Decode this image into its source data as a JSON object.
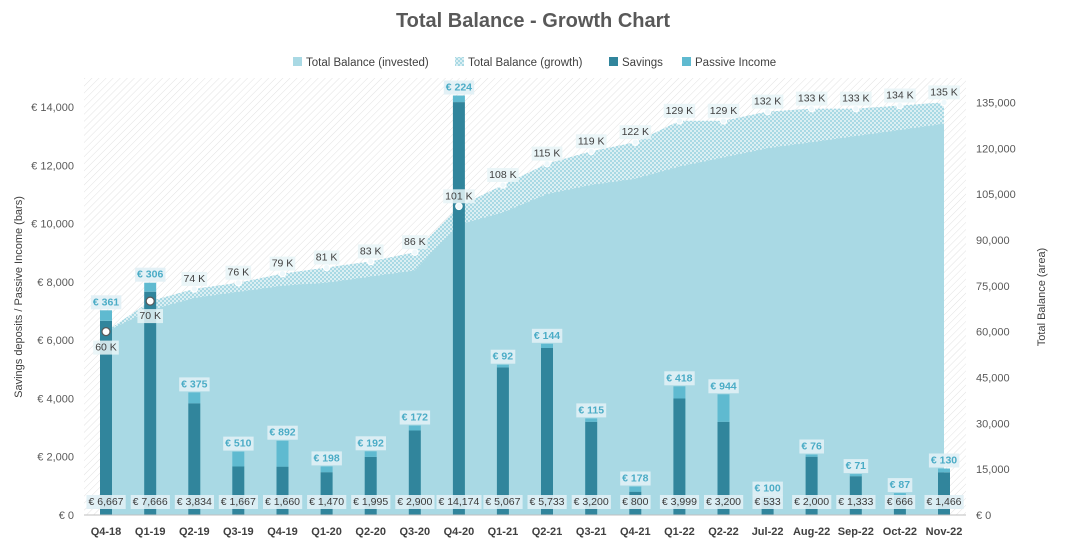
{
  "chart_data": {
    "type": "bar",
    "title": "Total Balance - Growth Chart",
    "ylabel_left": "Savings deposits / Passive Income (bars)",
    "ylabel_right": "Total Balance (area)",
    "y_left_range": [
      0,
      15000
    ],
    "y_right_range": [
      0,
      143000
    ],
    "y_left_ticks": [
      "€ 0",
      "€ 2,000",
      "€ 4,000",
      "€ 6,000",
      "€ 8,000",
      "€ 10,000",
      "€ 12,000",
      "€ 14,000"
    ],
    "y_right_ticks": [
      "€ 0",
      "15,000",
      "30,000",
      "45,000",
      "60,000",
      "75,000",
      "90,000",
      "105,000",
      "120,000",
      "135,000"
    ],
    "legend_position": "top",
    "colors": {
      "invested": "#a9d9e4",
      "growth": "#cfe8ef",
      "savings": "#31859c",
      "passive": "#5fbad0",
      "passive_label": "#4bacc6"
    },
    "legend": [
      {
        "name": "Total Balance (invested)",
        "style": "invested"
      },
      {
        "name": "Total Balance (growth)",
        "style": "growth"
      },
      {
        "name": "Savings",
        "style": "savings"
      },
      {
        "name": "Passive Income",
        "style": "passive"
      }
    ],
    "categories": [
      "Q4-18",
      "Q1-19",
      "Q2-19",
      "Q3-19",
      "Q4-19",
      "Q1-20",
      "Q2-20",
      "Q3-20",
      "Q4-20",
      "Q1-21",
      "Q2-21",
      "Q3-21",
      "Q4-21",
      "Q1-22",
      "Q2-22",
      "Jul-22",
      "Aug-22",
      "Sep-22",
      "Oct-22",
      "Nov-22"
    ],
    "series": [
      {
        "name": "Savings",
        "axis": "left",
        "values": [
          6667,
          7666,
          3834,
          1667,
          1660,
          1470,
          1995,
          2900,
          14174,
          5067,
          5733,
          3200,
          800,
          3999,
          3200,
          533,
          2000,
          1333,
          666,
          1466
        ],
        "labels": [
          "€ 6,667",
          "€ 7,666",
          "€ 3,834",
          "€ 1,667",
          "€ 1,660",
          "€ 1,470",
          "€ 1,995",
          "€ 2,900",
          "€ 14,174",
          "€ 5,067",
          "€ 5,733",
          "€ 3,200",
          "€ 800",
          "€ 3,999",
          "€ 3,200",
          "€ 533",
          "€ 2,000",
          "€ 1,333",
          "€ 666",
          "€ 1,466"
        ]
      },
      {
        "name": "Passive Income",
        "axis": "left",
        "values": [
          361,
          306,
          375,
          510,
          892,
          198,
          192,
          172,
          224,
          92,
          144,
          115,
          178,
          418,
          944,
          100,
          76,
          71,
          87,
          130
        ],
        "labels": [
          "€ 361",
          "€ 306",
          "€ 375",
          "€ 510",
          "€ 892",
          "€ 198",
          "€ 192",
          "€ 172",
          "€ 224",
          "€ 92",
          "€ 144",
          "€ 115",
          "€ 178",
          "€ 418",
          "€ 944",
          "€ 100",
          "€ 76",
          "€ 71",
          "€ 87",
          "€ 130"
        ]
      },
      {
        "name": "Total Balance (invested)",
        "axis": "right",
        "values": [
          60000,
          67000,
          71000,
          73000,
          75000,
          76000,
          78000,
          80000,
          95000,
          99000,
          105000,
          108000,
          110000,
          114000,
          117000,
          120000,
          122000,
          124000,
          126000,
          128000
        ]
      },
      {
        "name": "Total Balance (growth)",
        "axis": "right",
        "values": [
          60000,
          70000,
          74000,
          76000,
          79000,
          81000,
          83000,
          86000,
          101000,
          108000,
          115000,
          119000,
          122000,
          129000,
          129000,
          132000,
          133000,
          133000,
          134000,
          135000
        ],
        "labels": [
          "60 K",
          "70 K",
          "74 K",
          "76 K",
          "79 K",
          "81 K",
          "83 K",
          "86 K",
          "101 K",
          "108 K",
          "115 K",
          "119 K",
          "122 K",
          "129 K",
          "129 K",
          "132 K",
          "133 K",
          "133 K",
          "134 K",
          "135 K"
        ]
      }
    ]
  }
}
